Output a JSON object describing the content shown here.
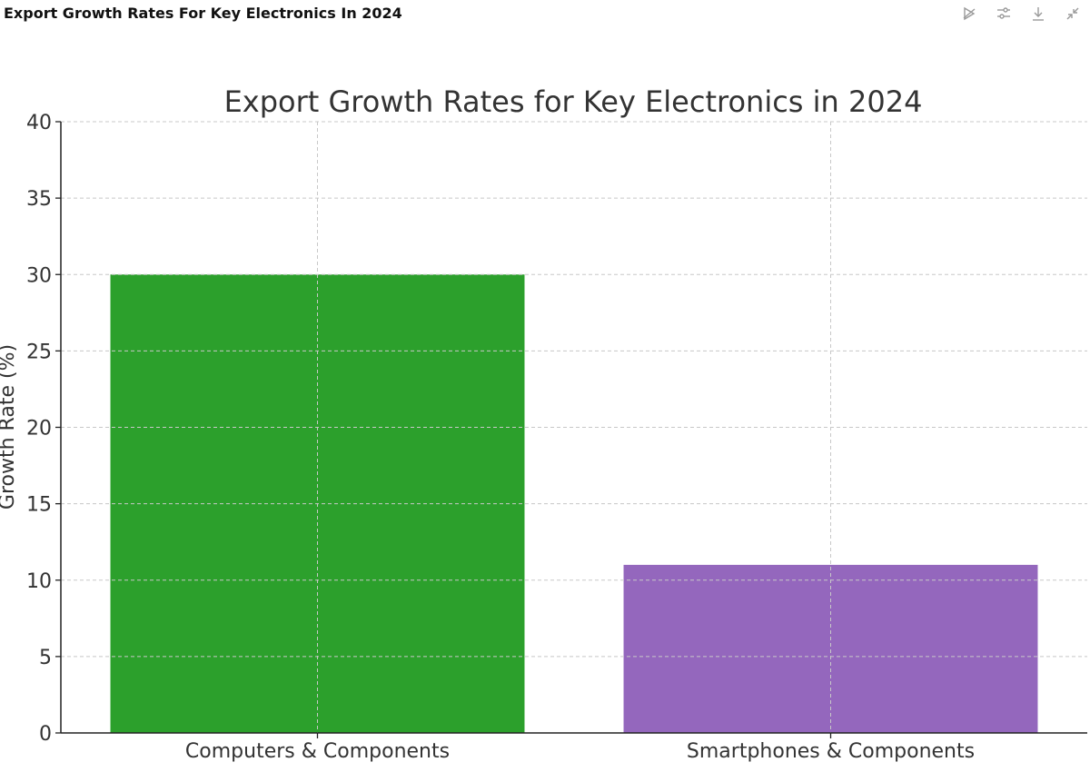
{
  "header": {
    "title": "Export Growth Rates For Key Electronics In 2024"
  },
  "toolbar": {
    "icons": [
      "chart-type-icon",
      "settings-sliders-icon",
      "download-icon",
      "collapse-icon"
    ]
  },
  "colors": {
    "bar_1": "#2ca02c",
    "bar_2": "#9467bd",
    "grid": "#cccccc",
    "axis": "#222222",
    "text": "#333333"
  },
  "chart_data": {
    "type": "bar",
    "title": "Export Growth Rates for Key Electronics in 2024",
    "xlabel": "",
    "ylabel": "Growth Rate (%)",
    "categories": [
      "Computers & Components",
      "Smartphones & Components"
    ],
    "values": [
      30,
      11
    ],
    "bar_colors": [
      "#2ca02c",
      "#9467bd"
    ],
    "ylim": [
      0,
      40
    ],
    "yticks": [
      0,
      5,
      10,
      15,
      20,
      25,
      30,
      35,
      40
    ],
    "grid": true
  }
}
